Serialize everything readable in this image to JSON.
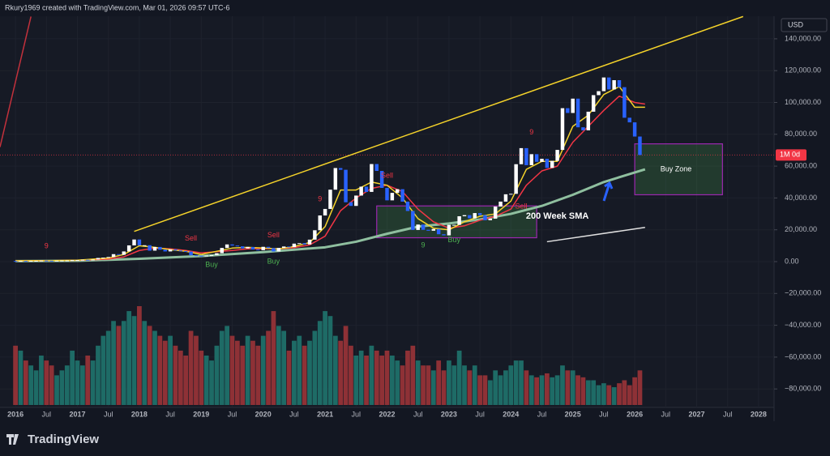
{
  "chart_data": {
    "type": "candlestick",
    "title": "Rkury1969 created with TradingView.com, Mar 01, 2026 09:57 UTC-6",
    "currency": "USD",
    "brand": "TradingView",
    "x": [
      "2016-01",
      "2016-02",
      "2016-03",
      "2016-04",
      "2016-05",
      "2016-06",
      "2016-07",
      "2016-08",
      "2016-09",
      "2016-10",
      "2016-11",
      "2016-12",
      "2017-01",
      "2017-02",
      "2017-03",
      "2017-04",
      "2017-05",
      "2017-06",
      "2017-07",
      "2017-08",
      "2017-09",
      "2017-10",
      "2017-11",
      "2017-12",
      "2018-01",
      "2018-02",
      "2018-03",
      "2018-04",
      "2018-05",
      "2018-06",
      "2018-07",
      "2018-08",
      "2018-09",
      "2018-10",
      "2018-11",
      "2018-12",
      "2019-01",
      "2019-02",
      "2019-03",
      "2019-04",
      "2019-05",
      "2019-06",
      "2019-07",
      "2019-08",
      "2019-09",
      "2019-10",
      "2019-11",
      "2019-12",
      "2020-01",
      "2020-02",
      "2020-03",
      "2020-04",
      "2020-05",
      "2020-06",
      "2020-07",
      "2020-08",
      "2020-09",
      "2020-10",
      "2020-11",
      "2020-12",
      "2021-01",
      "2021-02",
      "2021-03",
      "2021-04",
      "2021-05",
      "2021-06",
      "2021-07",
      "2021-08",
      "2021-09",
      "2021-10",
      "2021-11",
      "2021-12",
      "2022-01",
      "2022-02",
      "2022-03",
      "2022-04",
      "2022-05",
      "2022-06",
      "2022-07",
      "2022-08",
      "2022-09",
      "2022-10",
      "2022-11",
      "2022-12",
      "2023-01",
      "2023-02",
      "2023-03",
      "2023-04",
      "2023-05",
      "2023-06",
      "2023-07",
      "2023-08",
      "2023-09",
      "2023-10",
      "2023-11",
      "2023-12",
      "2024-01",
      "2024-02",
      "2024-03",
      "2024-04",
      "2024-05",
      "2024-06",
      "2024-07",
      "2024-08",
      "2024-09",
      "2024-10",
      "2024-11",
      "2024-12",
      "2025-01",
      "2025-02",
      "2025-03",
      "2025-04",
      "2025-05",
      "2025-06",
      "2025-07",
      "2025-08",
      "2025-09",
      "2025-10",
      "2025-11",
      "2025-12",
      "2026-01",
      "2026-02"
    ],
    "open": [
      430,
      370,
      440,
      420,
      450,
      530,
      670,
      620,
      570,
      610,
      700,
      740,
      960,
      970,
      1190,
      1070,
      1350,
      2300,
      2500,
      2900,
      4700,
      4300,
      6400,
      10200,
      13900,
      10200,
      10300,
      6900,
      9200,
      7500,
      6400,
      7700,
      7000,
      6600,
      6300,
      4000,
      3700,
      3400,
      3800,
      4100,
      5300,
      8600,
      10800,
      10100,
      9600,
      8300,
      9200,
      7600,
      7200,
      9300,
      8500,
      6400,
      8600,
      9500,
      9100,
      11300,
      11600,
      10800,
      13800,
      19700,
      29000,
      33100,
      45200,
      58800,
      57700,
      37300,
      35000,
      41500,
      47100,
      43800,
      61300,
      57000,
      46300,
      38500,
      43200,
      45500,
      37700,
      31800,
      19900,
      23300,
      20000,
      19400,
      20500,
      17200,
      16500,
      23100,
      23100,
      28500,
      29200,
      27200,
      30500,
      29200,
      26000,
      27000,
      34600,
      37700,
      42300,
      42600,
      61200,
      71300,
      60600,
      67500,
      62700,
      64600,
      58900,
      63300,
      70200,
      96400,
      93400,
      102400,
      84400,
      82500,
      94200,
      104600,
      107100,
      115700,
      108200,
      114000,
      109600,
      90400,
      87500,
      78600
    ],
    "close": [
      370,
      440,
      420,
      450,
      530,
      670,
      620,
      570,
      610,
      700,
      740,
      960,
      970,
      1190,
      1070,
      1350,
      2300,
      2500,
      2900,
      4700,
      4300,
      6400,
      10200,
      13900,
      10200,
      10300,
      6900,
      9200,
      7500,
      6400,
      7700,
      7000,
      6600,
      6300,
      4000,
      3700,
      3400,
      3800,
      4100,
      5300,
      8600,
      10800,
      10100,
      9600,
      8300,
      9200,
      7600,
      7200,
      9300,
      8500,
      6400,
      8600,
      9500,
      9100,
      11300,
      11600,
      10800,
      13800,
      19700,
      29000,
      33100,
      45200,
      58800,
      57700,
      37300,
      35000,
      41500,
      47100,
      43800,
      61300,
      57000,
      46300,
      38500,
      43200,
      45500,
      37700,
      31800,
      19900,
      23300,
      20000,
      19400,
      20500,
      17200,
      16500,
      23100,
      23100,
      28500,
      29200,
      27200,
      30500,
      29200,
      26000,
      27000,
      34600,
      37700,
      42300,
      42600,
      61200,
      71300,
      60600,
      67500,
      62700,
      64600,
      58900,
      63300,
      70200,
      96400,
      93400,
      102400,
      84400,
      82500,
      94200,
      104600,
      107100,
      115700,
      108200,
      114000,
      109600,
      90400,
      87500,
      78600,
      67000
    ],
    "volume": [
      60,
      55,
      45,
      40,
      35,
      50,
      45,
      40,
      30,
      35,
      40,
      55,
      45,
      40,
      50,
      45,
      60,
      70,
      75,
      85,
      80,
      85,
      95,
      90,
      100,
      85,
      80,
      75,
      70,
      65,
      70,
      60,
      55,
      50,
      75,
      70,
      55,
      50,
      45,
      60,
      75,
      80,
      70,
      65,
      60,
      70,
      65,
      60,
      70,
      75,
      95,
      80,
      75,
      55,
      65,
      70,
      60,
      65,
      75,
      85,
      95,
      90,
      70,
      65,
      80,
      60,
      50,
      55,
      50,
      60,
      55,
      50,
      55,
      50,
      45,
      40,
      55,
      60,
      45,
      40,
      40,
      35,
      45,
      35,
      45,
      40,
      55,
      40,
      35,
      40,
      30,
      30,
      25,
      35,
      30,
      35,
      40,
      45,
      45,
      35,
      30,
      28,
      30,
      32,
      28,
      30,
      40,
      35,
      35,
      30,
      28,
      25,
      25,
      20,
      22,
      20,
      18,
      22,
      25,
      20,
      28,
      35
    ],
    "up_color": "#ffffff",
    "down_color": "#2962ff",
    "volume_up_color": "#1e6b66",
    "volume_down_color": "#8e3136",
    "xlim": [
      "2015-10",
      "2028-04"
    ],
    "xticks": [
      {
        "value": "2016-01",
        "label": "2016"
      },
      {
        "value": "2016-07",
        "label": "Jul"
      },
      {
        "value": "2017-01",
        "label": "2017"
      },
      {
        "value": "2017-07",
        "label": "Jul"
      },
      {
        "value": "2018-01",
        "label": "2018"
      },
      {
        "value": "2018-07",
        "label": "Jul"
      },
      {
        "value": "2019-01",
        "label": "2019"
      },
      {
        "value": "2019-07",
        "label": "Jul"
      },
      {
        "value": "2020-01",
        "label": "2020"
      },
      {
        "value": "2020-07",
        "label": "Jul"
      },
      {
        "value": "2021-01",
        "label": "2021"
      },
      {
        "value": "2021-07",
        "label": "Jul"
      },
      {
        "value": "2022-01",
        "label": "2022"
      },
      {
        "value": "2022-07",
        "label": "Jul"
      },
      {
        "value": "2023-01",
        "label": "2023"
      },
      {
        "value": "2023-07",
        "label": "Jul"
      },
      {
        "value": "2024-01",
        "label": "2024"
      },
      {
        "value": "2024-07",
        "label": "Jul"
      },
      {
        "value": "2025-01",
        "label": "2025"
      },
      {
        "value": "2025-07",
        "label": "Jul"
      },
      {
        "value": "2026-01",
        "label": "2026"
      },
      {
        "value": "2026-07",
        "label": "Jul"
      },
      {
        "value": "2027-01",
        "label": "2027"
      },
      {
        "value": "2027-07",
        "label": "Jul"
      },
      {
        "value": "2028-01",
        "label": "2028"
      }
    ],
    "ylim": [
      -91600,
      154200
    ],
    "yticks": [
      {
        "value": 140000,
        "label": "140,000.00"
      },
      {
        "value": 120000,
        "label": "120,000.00"
      },
      {
        "value": 100000,
        "label": "100,000.00"
      },
      {
        "value": 80000,
        "label": "80,000.00"
      },
      {
        "value": 60000,
        "label": "60,000.00"
      },
      {
        "value": 40000,
        "label": "40,000.00"
      },
      {
        "value": 20000,
        "label": "20,000.00"
      },
      {
        "value": 0,
        "label": "0.00"
      },
      {
        "value": -20000,
        "label": "−20,000.00"
      },
      {
        "value": -40000,
        "label": "−40,000.00"
      },
      {
        "value": -60000,
        "label": "−60,000.00"
      },
      {
        "value": -80000,
        "label": "−80,000.00"
      }
    ],
    "grid": true,
    "price_line": {
      "value": 67000,
      "label": "1M 0d",
      "color": "#f23645"
    },
    "lines": [
      {
        "color": "#8fbf9f",
        "width": 3,
        "x": [
          "2016-01",
          "2017-01",
          "2018-01",
          "2019-01",
          "2020-01",
          "2021-01",
          "2021-07",
          "2022-01",
          "2022-07",
          "2023-01",
          "2023-07",
          "2024-01",
          "2024-07",
          "2025-01",
          "2025-07",
          "2026-01",
          "2026-03"
        ],
        "values": [
          300,
          500,
          1800,
          3500,
          6000,
          9000,
          12500,
          17500,
          22000,
          24000,
          26500,
          30000,
          35000,
          42000,
          50000,
          56000,
          58000
        ]
      },
      {
        "color": "#f23645",
        "width": 1.5,
        "x": [
          "2016-01",
          "2016-07",
          "2017-01",
          "2017-07",
          "2017-10",
          "2018-01",
          "2018-04",
          "2018-07",
          "2018-10",
          "2019-01",
          "2019-07",
          "2019-10",
          "2020-01",
          "2020-04",
          "2020-07",
          "2020-10",
          "2021-01",
          "2021-04",
          "2021-07",
          "2021-10",
          "2022-01",
          "2022-04",
          "2022-07",
          "2022-10",
          "2023-01",
          "2023-04",
          "2023-07",
          "2023-10",
          "2024-01",
          "2024-04",
          "2024-07",
          "2024-10",
          "2025-01",
          "2025-04",
          "2025-07",
          "2025-10",
          "2026-01",
          "2026-03"
        ],
        "values": [
          450,
          550,
          800,
          1600,
          3000,
          7000,
          8500,
          8000,
          7000,
          5500,
          7000,
          8000,
          8200,
          8000,
          8800,
          10500,
          16000,
          32000,
          40000,
          46000,
          48000,
          44000,
          33000,
          25000,
          21000,
          22500,
          26000,
          28500,
          33000,
          48000,
          57000,
          60000,
          75000,
          85000,
          95000,
          104000,
          100000,
          99000
        ]
      },
      {
        "color": "#f5d32a",
        "width": 1.5,
        "x": [
          "2016-01",
          "2016-07",
          "2017-01",
          "2017-07",
          "2017-10",
          "2018-01",
          "2018-04",
          "2018-07",
          "2018-10",
          "2019-01",
          "2019-07",
          "2019-10",
          "2020-01",
          "2020-04",
          "2020-07",
          "2020-10",
          "2021-01",
          "2021-04",
          "2021-07",
          "2021-10",
          "2022-01",
          "2022-04",
          "2022-07",
          "2022-10",
          "2023-01",
          "2023-04",
          "2023-07",
          "2023-10",
          "2024-01",
          "2024-04",
          "2024-07",
          "2024-10",
          "2025-01",
          "2025-04",
          "2025-07",
          "2025-10",
          "2026-01",
          "2026-03"
        ],
        "values": [
          500,
          600,
          900,
          2200,
          4500,
          10000,
          9000,
          7500,
          6500,
          4500,
          8500,
          9000,
          8500,
          8000,
          9500,
          12000,
          22000,
          45000,
          45000,
          50000,
          48000,
          40000,
          27000,
          21000,
          20000,
          25000,
          28500,
          30000,
          38000,
          58000,
          63000,
          63000,
          85000,
          92000,
          105000,
          110000,
          97000,
          97000
        ]
      }
    ],
    "trendlines": [
      {
        "color": "#f5d32a",
        "x": [
          "2017-12",
          "2027-10"
        ],
        "values": [
          19000,
          154000
        ]
      },
      {
        "color": "#c2313c",
        "x": [
          "2015-10",
          "2016-04"
        ],
        "values": [
          72000,
          154000
        ]
      },
      {
        "color": "#e0e0e0",
        "x": [
          "2024-08",
          "2026-03"
        ],
        "values": [
          12500,
          21500
        ]
      }
    ],
    "boxes": [
      {
        "x": [
          "2021-11",
          "2024-06"
        ],
        "y": [
          15000,
          35000
        ],
        "color": "#9c27b0"
      },
      {
        "x": [
          "2026-01",
          "2027-06"
        ],
        "y": [
          42000,
          74000
        ],
        "color": "#9c27b0"
      }
    ],
    "annotations": [
      {
        "text": "Buy Zone",
        "x": "2026-09",
        "y": 58000,
        "color": "#ffffff"
      },
      {
        "text": "200 Week SMA",
        "x": "2024-10",
        "y": 28500,
        "color": "#ffffff"
      },
      {
        "text": "Sell",
        "x": "2018-11",
        "y": 14500,
        "color": "#f23645"
      },
      {
        "text": "Sell",
        "x": "2020-03",
        "y": 16500,
        "color": "#f23645"
      },
      {
        "text": "Sell",
        "x": "2022-01",
        "y": 54000,
        "color": "#f23645"
      },
      {
        "text": "Sell",
        "x": "2024-03",
        "y": 34500,
        "color": "#f23645"
      },
      {
        "text": "Buy",
        "x": "2019-03",
        "y": -2000,
        "color": "#4caf50"
      },
      {
        "text": "Buy",
        "x": "2020-03",
        "y": -100,
        "color": "#4caf50"
      },
      {
        "text": "Buy",
        "x": "2023-02",
        "y": 13500,
        "color": "#4caf50"
      },
      {
        "text": "9",
        "x": "2016-07",
        "y": 9500,
        "color": "#f23645"
      },
      {
        "text": "9",
        "x": "2020-12",
        "y": 39000,
        "color": "#f23645"
      },
      {
        "text": "9",
        "x": "2024-05",
        "y": 81000,
        "color": "#f23645"
      },
      {
        "text": "9",
        "x": "2022-08",
        "y": 10000,
        "color": "#4caf50"
      }
    ]
  }
}
